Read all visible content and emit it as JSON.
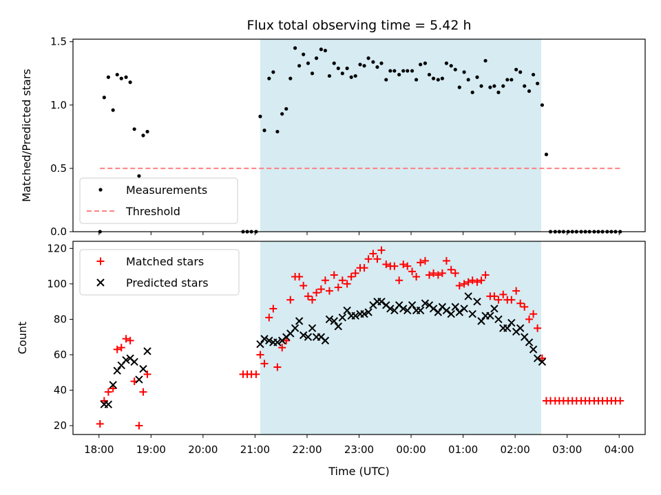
{
  "chart_data": [
    {
      "type": "scatter",
      "title": "Flux total observing time = 5.42 h",
      "xlabel": "",
      "ylabel": "Matched/Predicted stars",
      "xlim": [
        -0.5,
        10.5
      ],
      "ylim": [
        0,
        1.52
      ],
      "yticks": [
        0,
        0.5,
        1.0,
        1.5
      ],
      "ytick_labels": [
        "0.0",
        "0.5",
        "1.0",
        "1.5"
      ],
      "observing_window": [
        3.1,
        8.5
      ],
      "legend": [
        {
          "key": "measurements",
          "label": "Measurements"
        },
        {
          "key": "threshold",
          "label": "Threshold"
        }
      ],
      "threshold": {
        "value": 0.5,
        "x_range": [
          0.02,
          10.02
        ],
        "color": "#ff8080"
      },
      "series": [
        {
          "name": "Measurements",
          "color": "#000000",
          "x": [
            0.02,
            0.1,
            0.18,
            0.27,
            0.35,
            0.43,
            0.52,
            0.6,
            0.68,
            0.77,
            0.85,
            0.93,
            2.77,
            2.85,
            2.93,
            3.02,
            3.1,
            3.18,
            3.27,
            3.35,
            3.43,
            3.52,
            3.6,
            3.68,
            3.77,
            3.85,
            3.93,
            4.02,
            4.1,
            4.18,
            4.27,
            4.35,
            4.43,
            4.52,
            4.6,
            4.68,
            4.77,
            4.85,
            4.93,
            5.02,
            5.1,
            5.18,
            5.27,
            5.35,
            5.43,
            5.52,
            5.6,
            5.68,
            5.77,
            5.85,
            5.93,
            6.02,
            6.1,
            6.18,
            6.27,
            6.35,
            6.43,
            6.52,
            6.6,
            6.68,
            6.77,
            6.85,
            6.93,
            7.02,
            7.1,
            7.18,
            7.27,
            7.35,
            7.43,
            7.52,
            7.6,
            7.68,
            7.77,
            7.85,
            7.93,
            8.02,
            8.1,
            8.18,
            8.27,
            8.35,
            8.43,
            8.52,
            8.6,
            8.68,
            8.77,
            8.85,
            8.93,
            9.02,
            9.1,
            9.18,
            9.27,
            9.35,
            9.43,
            9.52,
            9.6,
            9.68,
            9.77,
            9.85,
            9.93,
            10.02
          ],
          "y": [
            0.0,
            1.06,
            1.22,
            0.96,
            1.24,
            1.21,
            1.22,
            1.18,
            0.81,
            0.44,
            0.76,
            0.79,
            0.0,
            0.0,
            0.0,
            0.0,
            0.91,
            0.8,
            1.21,
            1.26,
            0.79,
            0.93,
            0.97,
            1.21,
            1.45,
            1.31,
            1.4,
            1.33,
            1.25,
            1.37,
            1.44,
            1.43,
            1.23,
            1.33,
            1.29,
            1.25,
            1.29,
            1.22,
            1.23,
            1.32,
            1.31,
            1.37,
            1.34,
            1.3,
            1.33,
            1.2,
            1.27,
            1.27,
            1.24,
            1.27,
            1.27,
            1.27,
            1.2,
            1.32,
            1.33,
            1.24,
            1.21,
            1.2,
            1.21,
            1.33,
            1.31,
            1.28,
            1.14,
            1.26,
            1.2,
            1.1,
            1.22,
            1.15,
            1.35,
            1.14,
            1.15,
            1.1,
            1.15,
            1.2,
            1.2,
            1.28,
            1.26,
            1.15,
            1.11,
            1.24,
            1.17,
            1.0,
            0.61,
            0.0,
            0.0,
            0.0,
            0.0,
            0.0,
            0.0,
            0.0,
            0.0,
            0.0,
            0.0,
            0.0,
            0.0,
            0.0,
            0.0,
            0.0,
            0.0,
            0.0
          ]
        }
      ]
    },
    {
      "type": "scatter",
      "title": "",
      "xlabel": "Time (UTC)",
      "ylabel": "Count",
      "xlim": [
        -0.5,
        10.5
      ],
      "ylim": [
        15,
        124
      ],
      "yticks": [
        20,
        40,
        60,
        80,
        100,
        120
      ],
      "ytick_labels": [
        "20",
        "40",
        "60",
        "80",
        "100",
        "120"
      ],
      "xticks": [
        0,
        1,
        2,
        3,
        4,
        5,
        6,
        7,
        8,
        9,
        10
      ],
      "xtick_labels": [
        "18:00",
        "19:00",
        "20:00",
        "21:00",
        "22:00",
        "23:00",
        "00:00",
        "01:00",
        "02:00",
        "03:00",
        "04:00"
      ],
      "observing_window": [
        3.1,
        8.5
      ],
      "legend": [
        {
          "key": "matched",
          "label": "Matched stars"
        },
        {
          "key": "predicted",
          "label": "Predicted stars"
        }
      ],
      "series": [
        {
          "name": "Matched stars",
          "marker": "plus",
          "color": "#ff0000",
          "x": [
            0.02,
            0.1,
            0.18,
            0.27,
            0.35,
            0.43,
            0.52,
            0.6,
            0.68,
            0.77,
            0.85,
            0.93,
            2.77,
            2.85,
            2.93,
            3.02,
            3.1,
            3.18,
            3.27,
            3.35,
            3.43,
            3.52,
            3.6,
            3.68,
            3.77,
            3.85,
            3.93,
            4.02,
            4.1,
            4.18,
            4.27,
            4.35,
            4.43,
            4.52,
            4.6,
            4.68,
            4.77,
            4.85,
            4.93,
            5.02,
            5.1,
            5.18,
            5.27,
            5.35,
            5.43,
            5.52,
            5.6,
            5.68,
            5.77,
            5.85,
            5.93,
            6.02,
            6.1,
            6.18,
            6.27,
            6.35,
            6.43,
            6.52,
            6.6,
            6.68,
            6.77,
            6.85,
            6.93,
            7.02,
            7.1,
            7.18,
            7.27,
            7.35,
            7.43,
            7.52,
            7.6,
            7.68,
            7.77,
            7.85,
            7.93,
            8.02,
            8.1,
            8.18,
            8.27,
            8.35,
            8.43,
            8.52,
            8.6,
            8.68,
            8.77,
            8.85,
            8.93,
            9.02,
            9.1,
            9.18,
            9.27,
            9.35,
            9.43,
            9.52,
            9.6,
            9.68,
            9.77,
            9.85,
            9.93,
            10.02
          ],
          "y": [
            21,
            34,
            39,
            41,
            63,
            64,
            69,
            68,
            45,
            20,
            39,
            49,
            49,
            49,
            49,
            49,
            60,
            55,
            81,
            86,
            53,
            64,
            68,
            91,
            104,
            104,
            99,
            93,
            91,
            95,
            97,
            102,
            96,
            105,
            98,
            102,
            100,
            104,
            106,
            109,
            109,
            114,
            117,
            114,
            119,
            111,
            110,
            110,
            102,
            111,
            110,
            107,
            104,
            112,
            113,
            105,
            106,
            105,
            106,
            113,
            108,
            106,
            99,
            100,
            101,
            102,
            101,
            102,
            105,
            93,
            93,
            91,
            94,
            91,
            91,
            96,
            89,
            87,
            80,
            83,
            75,
            58,
            34,
            34,
            34,
            34,
            34,
            34,
            34,
            34,
            34,
            34,
            34,
            34,
            34,
            34,
            34,
            34,
            34,
            34
          ]
        },
        {
          "name": "Predicted stars",
          "marker": "x",
          "color": "#000000",
          "x": [
            0.1,
            0.18,
            0.27,
            0.35,
            0.43,
            0.52,
            0.6,
            0.68,
            0.77,
            0.85,
            0.93,
            3.1,
            3.18,
            3.27,
            3.35,
            3.43,
            3.52,
            3.6,
            3.68,
            3.77,
            3.85,
            3.93,
            4.02,
            4.1,
            4.18,
            4.27,
            4.35,
            4.43,
            4.52,
            4.6,
            4.68,
            4.77,
            4.85,
            4.93,
            5.02,
            5.1,
            5.18,
            5.27,
            5.35,
            5.43,
            5.52,
            5.6,
            5.68,
            5.77,
            5.85,
            5.93,
            6.02,
            6.1,
            6.18,
            6.27,
            6.35,
            6.43,
            6.52,
            6.6,
            6.68,
            6.77,
            6.85,
            6.93,
            7.02,
            7.1,
            7.18,
            7.27,
            7.35,
            7.43,
            7.52,
            7.6,
            7.68,
            7.77,
            7.85,
            7.93,
            8.02,
            8.1,
            8.18,
            8.27,
            8.35,
            8.43,
            8.52
          ],
          "y": [
            32,
            32,
            43,
            51,
            54,
            57,
            58,
            56,
            46,
            52,
            62,
            66,
            69,
            68,
            67,
            67,
            68,
            70,
            72,
            75,
            79,
            71,
            70,
            75,
            70,
            70,
            68,
            80,
            79,
            76,
            81,
            85,
            82,
            82,
            83,
            83,
            84,
            88,
            90,
            90,
            88,
            86,
            85,
            88,
            86,
            85,
            88,
            85,
            85,
            89,
            88,
            86,
            84,
            87,
            85,
            83,
            87,
            84,
            86,
            93,
            83,
            90,
            79,
            82,
            82,
            86,
            80,
            75,
            75,
            78,
            73,
            75,
            70,
            67,
            63,
            58,
            56
          ]
        }
      ]
    }
  ]
}
